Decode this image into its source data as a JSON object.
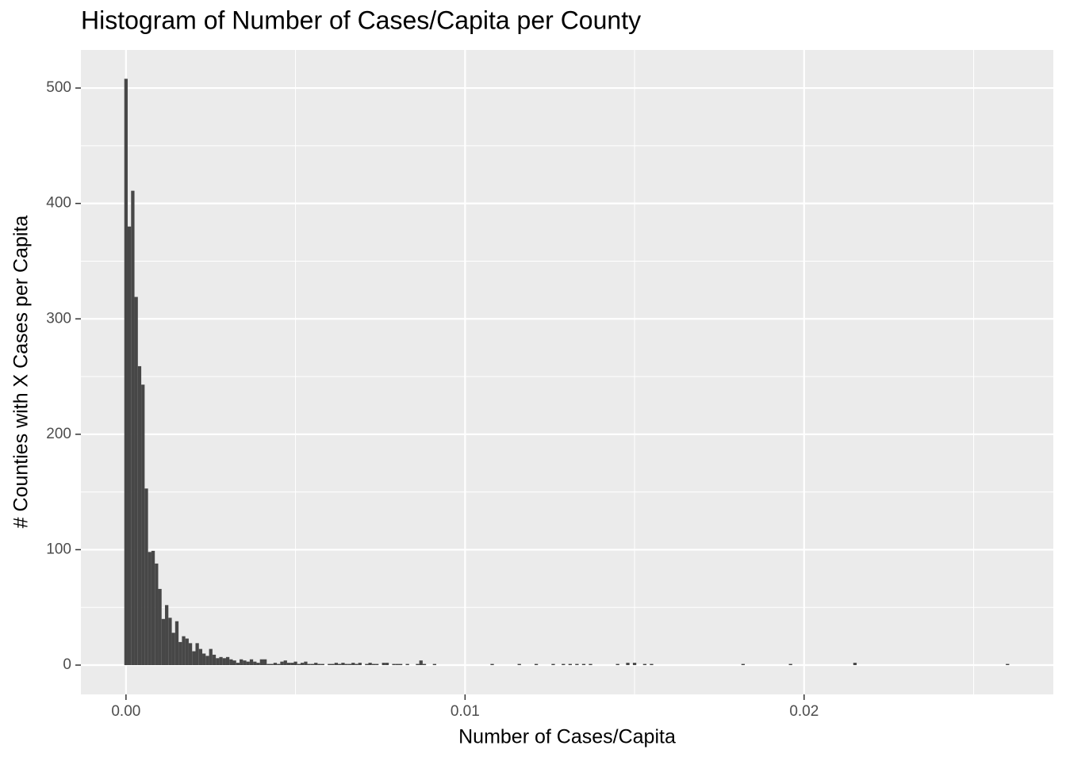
{
  "chart_data": {
    "type": "histogram",
    "title": "Histogram of Number of  Cases/Capita per County",
    "x_label": "Number of Cases/Capita",
    "y_label": "# Counties with X Cases per Capita",
    "color": "#474747",
    "panel_color": "#ebebeb",
    "grid": true,
    "xlim": [
      -0.00133,
      0.02735
    ],
    "ylim": [
      -25.4,
      533
    ],
    "xticks": [
      {
        "value": 0,
        "label": "0.00"
      },
      0.01,
      0.02
    ],
    "xminor": [
      0.005,
      0.015,
      0.025
    ],
    "yticks": [
      0,
      100,
      200,
      300,
      400,
      500
    ],
    "yminor": [
      50,
      150,
      250,
      350,
      450
    ],
    "bins": [
      -5e-05,
      5e-05,
      0.00015,
      0.00025,
      0.00035,
      0.00045,
      0.00055,
      0.00065,
      0.00075,
      0.00085,
      0.00095,
      0.00105,
      0.00115,
      0.00125,
      0.00135,
      0.00145,
      0.00155,
      0.00165,
      0.00175,
      0.00185,
      0.00195,
      0.00205,
      0.00215,
      0.00225,
      0.00235,
      0.00245,
      0.00255,
      0.00265,
      0.00275,
      0.00285,
      0.00295,
      0.00305,
      0.00315,
      0.00325,
      0.00335,
      0.00345,
      0.00355,
      0.00365,
      0.00375,
      0.00385,
      0.00395,
      0.00405,
      0.00415,
      0.00425,
      0.00435,
      0.00445,
      0.00455,
      0.00465,
      0.00475,
      0.00485,
      0.00495,
      0.00505,
      0.00515,
      0.00525,
      0.00535,
      0.00545,
      0.00555,
      0.00565,
      0.00575,
      0.00585,
      0.00595,
      0.00605,
      0.00615,
      0.00625,
      0.00635,
      0.00645,
      0.00655,
      0.00665,
      0.00675,
      0.00685,
      0.00695,
      0.00705,
      0.00715,
      0.00725,
      0.00735,
      0.00745,
      0.00755,
      0.00765,
      0.00775,
      0.00785,
      0.00795,
      0.00805,
      0.00815,
      0.00825,
      0.00835,
      0.00845,
      0.00855,
      0.00865,
      0.00875,
      0.00885,
      0.00895,
      0.00905,
      0.00915,
      0.00925,
      0.00935,
      0.00945,
      0.00955,
      0.00965,
      0.00975,
      0.00985,
      0.00995,
      0.01005,
      0.01015,
      0.01025,
      0.01035,
      0.01045,
      0.01055,
      0.01065,
      0.01075,
      0.01085,
      0.01095,
      0.01105,
      0.01115,
      0.01125,
      0.01135,
      0.01145,
      0.01155,
      0.01165,
      0.01175,
      0.01185,
      0.01195,
      0.01205,
      0.01215,
      0.01225,
      0.01235,
      0.01245,
      0.01255,
      0.01265,
      0.01275,
      0.01285,
      0.01295,
      0.01305,
      0.01315,
      0.01325,
      0.01335,
      0.01345,
      0.01355,
      0.01365,
      0.01375,
      0.01385,
      0.01395,
      0.01405,
      0.01415,
      0.01425,
      0.01435,
      0.01445,
      0.01455,
      0.01465,
      0.01475,
      0.01485,
      0.01495,
      0.01505,
      0.01515,
      0.01525,
      0.01535,
      0.01545,
      0.01555,
      0.01565,
      0.01575,
      0.01585,
      0.01595,
      0.01605,
      0.01615,
      0.01625,
      0.01635,
      0.01645,
      0.01655,
      0.01665,
      0.01675,
      0.01685,
      0.01695,
      0.01705,
      0.01715,
      0.01725,
      0.01735,
      0.01745,
      0.01755,
      0.01765,
      0.01775,
      0.01785,
      0.01795,
      0.01805,
      0.01815,
      0.01825,
      0.01835,
      0.01845,
      0.01855,
      0.01865,
      0.01875,
      0.01885,
      0.01895,
      0.01905,
      0.01915,
      0.01925,
      0.01935,
      0.01945,
      0.01955,
      0.01965,
      0.01975,
      0.01985,
      0.01995,
      0.02005,
      0.02015,
      0.02025,
      0.02035,
      0.02045,
      0.02055,
      0.02065,
      0.02075,
      0.02085,
      0.02095,
      0.02105,
      0.02115,
      0.02125,
      0.02135,
      0.02145,
      0.02155,
      0.02165,
      0.02175,
      0.02185,
      0.02195,
      0.02205,
      0.02215,
      0.02225,
      0.02235,
      0.02245,
      0.02255,
      0.02265,
      0.02275,
      0.02285,
      0.02295,
      0.02305,
      0.02315,
      0.02325,
      0.02335,
      0.02345,
      0.02355,
      0.02365,
      0.02375,
      0.02385,
      0.02395,
      0.02405,
      0.02415,
      0.02425,
      0.02435,
      0.02445,
      0.02455,
      0.02465,
      0.02475,
      0.02485,
      0.02495,
      0.02505,
      0.02515,
      0.02525,
      0.02535,
      0.02545,
      0.02555,
      0.02565,
      0.02575,
      0.02585,
      0.02595,
      0.02605
    ],
    "counts": [
      508,
      380,
      411,
      319,
      259,
      243,
      153,
      98,
      99,
      88,
      66,
      40,
      52,
      41,
      28,
      38,
      20,
      25,
      23,
      19,
      12,
      19,
      14,
      10,
      8,
      14,
      9,
      6,
      7,
      6,
      7,
      5,
      4,
      2,
      5,
      4,
      3,
      5,
      3,
      2,
      5,
      5,
      1,
      1,
      2,
      1,
      3,
      4,
      2,
      2,
      3,
      1,
      2,
      3,
      1,
      1,
      2,
      1,
      1,
      0,
      1,
      1,
      2,
      1,
      2,
      1,
      1,
      2,
      1,
      2,
      0,
      1,
      2,
      1,
      1,
      0,
      2,
      2,
      0,
      1,
      1,
      1,
      0,
      1,
      0,
      0,
      1,
      4,
      1,
      0,
      0,
      1,
      0,
      0,
      0,
      0,
      0,
      0,
      0,
      0,
      0,
      0,
      0,
      0,
      0,
      0,
      0,
      0,
      1,
      0,
      0,
      0,
      0,
      0,
      0,
      0,
      1,
      0,
      0,
      0,
      0,
      1,
      0,
      0,
      0,
      0,
      1,
      0,
      0,
      1,
      0,
      1,
      0,
      1,
      0,
      1,
      0,
      1,
      0,
      0,
      0,
      0,
      0,
      0,
      0,
      1,
      0,
      0,
      2,
      0,
      2,
      0,
      0,
      1,
      0,
      1,
      0,
      0,
      0,
      0,
      0,
      0,
      0,
      0,
      0,
      0,
      0,
      0,
      0,
      0,
      0,
      0,
      0,
      0,
      0,
      0,
      0,
      0,
      0,
      0,
      0,
      0,
      1,
      0,
      0,
      0,
      0,
      0,
      0,
      0,
      0,
      0,
      0,
      0,
      0,
      0,
      1,
      0,
      0,
      0,
      0,
      0,
      0,
      0,
      0,
      0,
      0,
      0,
      0,
      0,
      0,
      0,
      0,
      0,
      0,
      2,
      0,
      0,
      0,
      0,
      0,
      0,
      0,
      0,
      0,
      0,
      0,
      0,
      0,
      0,
      0,
      0,
      0,
      0,
      0,
      0,
      0,
      0,
      0,
      0,
      0,
      0,
      0,
      0,
      0,
      0,
      0,
      0,
      0,
      0,
      0,
      0,
      0,
      0,
      0,
      0,
      0,
      0,
      0,
      0,
      1
    ]
  }
}
